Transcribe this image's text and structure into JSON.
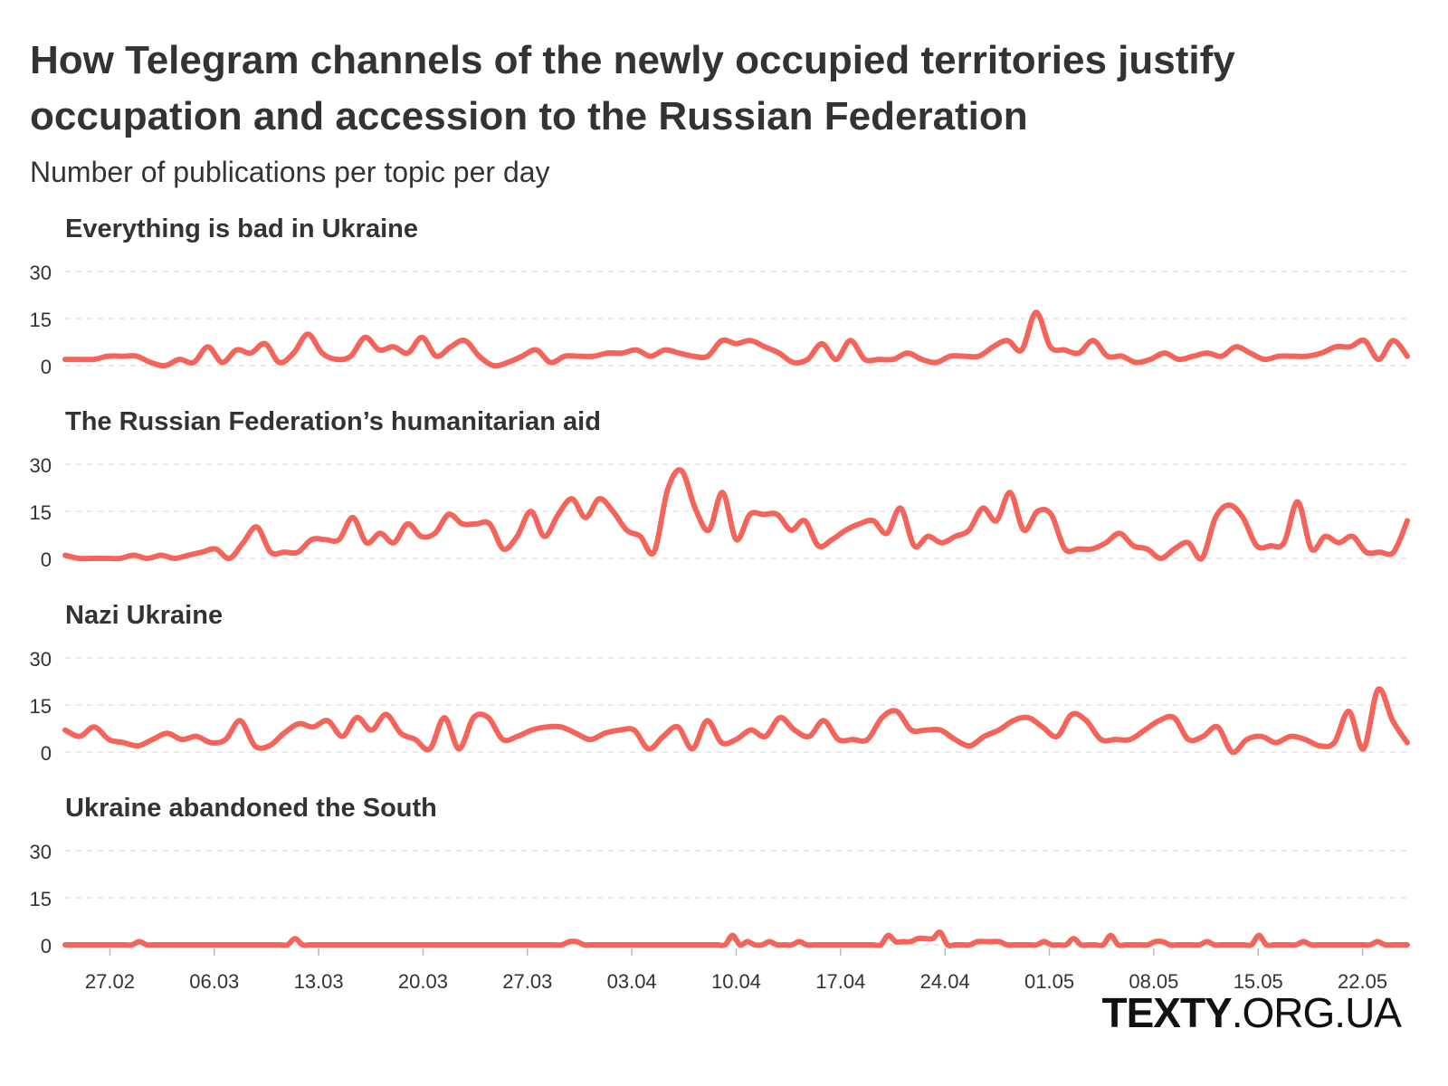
{
  "title": "How Telegram channels of the newly occupied territories justify occupation and accession to the Russian Federation",
  "subtitle": "Number of publications per topic per day",
  "brand": {
    "strong": "TEXTY",
    "light": ".ORG.UA"
  },
  "colors": {
    "line": "#f4645a",
    "grid": "#e4e4e4",
    "text": "#333333"
  },
  "chart_data": {
    "type": "line",
    "x_start": "2022-02-24",
    "x_tick_labels": [
      "27.02",
      "06.03",
      "13.03",
      "20.03",
      "27.03",
      "03.04",
      "10.04",
      "17.04",
      "24.04",
      "01.05",
      "08.05",
      "15.05",
      "22.05"
    ],
    "y_ticks": [
      0,
      15,
      30
    ],
    "ylim": [
      0,
      30
    ],
    "grid": true,
    "panels": [
      {
        "name": "Everything is bad in Ukraine",
        "values": [
          2,
          2,
          2,
          3,
          3,
          3,
          1,
          0,
          2,
          1,
          6,
          1,
          5,
          4,
          7,
          1,
          4,
          10,
          4,
          2,
          3,
          9,
          5,
          6,
          4,
          9,
          3,
          6,
          8,
          3,
          0,
          1,
          3,
          5,
          1,
          3,
          3,
          3,
          4,
          4,
          5,
          3,
          5,
          4,
          3,
          3,
          8,
          7,
          8,
          6,
          4,
          1,
          2,
          7,
          2,
          8,
          2,
          2,
          2,
          4,
          2,
          1,
          3,
          3,
          3,
          6,
          8,
          5,
          17,
          6,
          5,
          4,
          8,
          3,
          3,
          1,
          2,
          4,
          2,
          3,
          4,
          3,
          6,
          4,
          2,
          3,
          3,
          3,
          4,
          6,
          6,
          8,
          2,
          8,
          3
        ]
      },
      {
        "name": "The Russian Federation’s humanitarian aid",
        "values": [
          1,
          0,
          0,
          0,
          0,
          1,
          0,
          1,
          0,
          1,
          2,
          3,
          0,
          5,
          10,
          2,
          2,
          2,
          6,
          6,
          6,
          13,
          5,
          8,
          5,
          11,
          7,
          8,
          14,
          11,
          11,
          11,
          3,
          7,
          15,
          7,
          14,
          19,
          13,
          19,
          15,
          9,
          7,
          2,
          22,
          28,
          16,
          9,
          21,
          6,
          14,
          14,
          14,
          9,
          12,
          4,
          6,
          9,
          11,
          12,
          8,
          16,
          4,
          7,
          5,
          7,
          9,
          16,
          12,
          21,
          9,
          15,
          14,
          3,
          3,
          3,
          5,
          8,
          4,
          3,
          0,
          3,
          5,
          0,
          13,
          17,
          13,
          4,
          4,
          5,
          18,
          3,
          7,
          5,
          7,
          2,
          2,
          2,
          12
        ]
      },
      {
        "name": "Nazi Ukraine",
        "values": [
          7,
          5,
          8,
          4,
          3,
          2,
          4,
          6,
          4,
          5,
          3,
          4,
          10,
          2,
          2,
          6,
          9,
          8,
          10,
          5,
          11,
          7,
          12,
          6,
          4,
          1,
          11,
          1,
          11,
          11,
          4,
          5,
          7,
          8,
          8,
          6,
          4,
          6,
          7,
          7,
          1,
          5,
          8,
          1,
          10,
          3,
          4,
          7,
          5,
          11,
          7,
          5,
          10,
          4,
          4,
          4,
          11,
          13,
          7,
          7,
          7,
          4,
          2,
          5,
          7,
          10,
          11,
          8,
          5,
          12,
          10,
          4,
          4,
          4,
          7,
          10,
          11,
          4,
          5,
          8,
          0,
          4,
          5,
          3,
          5,
          4,
          2,
          3,
          13,
          1,
          20,
          10,
          3
        ]
      },
      {
        "name": "Ukraine abandoned the South",
        "values": [
          0,
          0,
          0,
          0,
          0,
          0,
          0,
          0,
          0,
          0,
          1,
          0,
          0,
          0,
          0,
          0,
          0,
          0,
          0,
          0,
          0,
          0,
          0,
          0,
          0,
          0,
          0,
          0,
          0,
          0,
          0,
          2,
          0,
          0,
          0,
          0,
          0,
          0,
          0,
          0,
          0,
          0,
          0,
          0,
          0,
          0,
          0,
          0,
          0,
          0,
          0,
          0,
          0,
          0,
          0,
          0,
          0,
          0,
          0,
          0,
          0,
          0,
          0,
          0,
          0,
          0,
          0,
          0,
          1,
          1,
          0,
          0,
          0,
          0,
          0,
          0,
          0,
          0,
          0,
          0,
          0,
          0,
          0,
          0,
          0,
          0,
          0,
          0,
          0,
          0,
          3,
          0,
          1,
          0,
          0,
          1,
          0,
          0,
          0,
          1,
          0,
          0,
          0,
          0,
          0,
          0,
          0,
          0,
          0,
          0,
          0,
          3,
          1,
          1,
          1,
          2,
          2,
          2,
          4,
          0,
          0,
          0,
          0,
          1,
          1,
          1,
          1,
          0,
          0,
          0,
          0,
          0,
          1,
          0,
          0,
          0,
          2,
          0,
          0,
          0,
          0,
          3,
          0,
          0,
          0,
          0,
          0,
          1,
          1,
          0,
          0,
          0,
          0,
          0,
          1,
          0,
          0,
          0,
          0,
          0,
          0,
          3,
          0,
          0,
          0,
          0,
          0,
          1,
          0,
          0,
          0,
          0,
          0,
          0,
          0,
          0,
          0,
          1,
          0,
          0,
          0,
          0
        ]
      }
    ]
  }
}
